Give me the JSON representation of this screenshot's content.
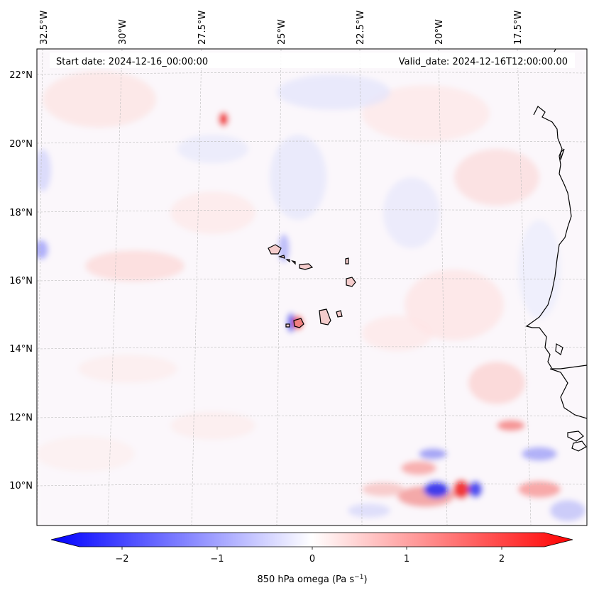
{
  "map": {
    "start_date": "Start date: 2024-12-16_00:00:00",
    "valid_date": "Valid_date: 2024-12-16T12:00:00.00",
    "lon_labels": [
      "32.5°W",
      "30°W",
      "27.5°W",
      "25°W",
      "22.5°W",
      "20°W",
      "17.5°W"
    ],
    "lat_labels": [
      "22°N",
      "20°N",
      "18°N",
      "16°N",
      "14°N",
      "12°N",
      "10°N"
    ],
    "colorbar": {
      "label_main": "850 hPa omega (Pa s",
      "label_exp": "−1",
      "label_close": ")",
      "ticks": [
        "−2",
        "−1",
        "0",
        "1",
        "2"
      ],
      "range": [
        -2.6,
        2.6
      ],
      "colors": {
        "negative": "#0000ff",
        "zero": "#ffffff",
        "positive": "#ff0000"
      }
    },
    "coastline_color": "#000000",
    "gridline_color": "#bbbbbb"
  }
}
